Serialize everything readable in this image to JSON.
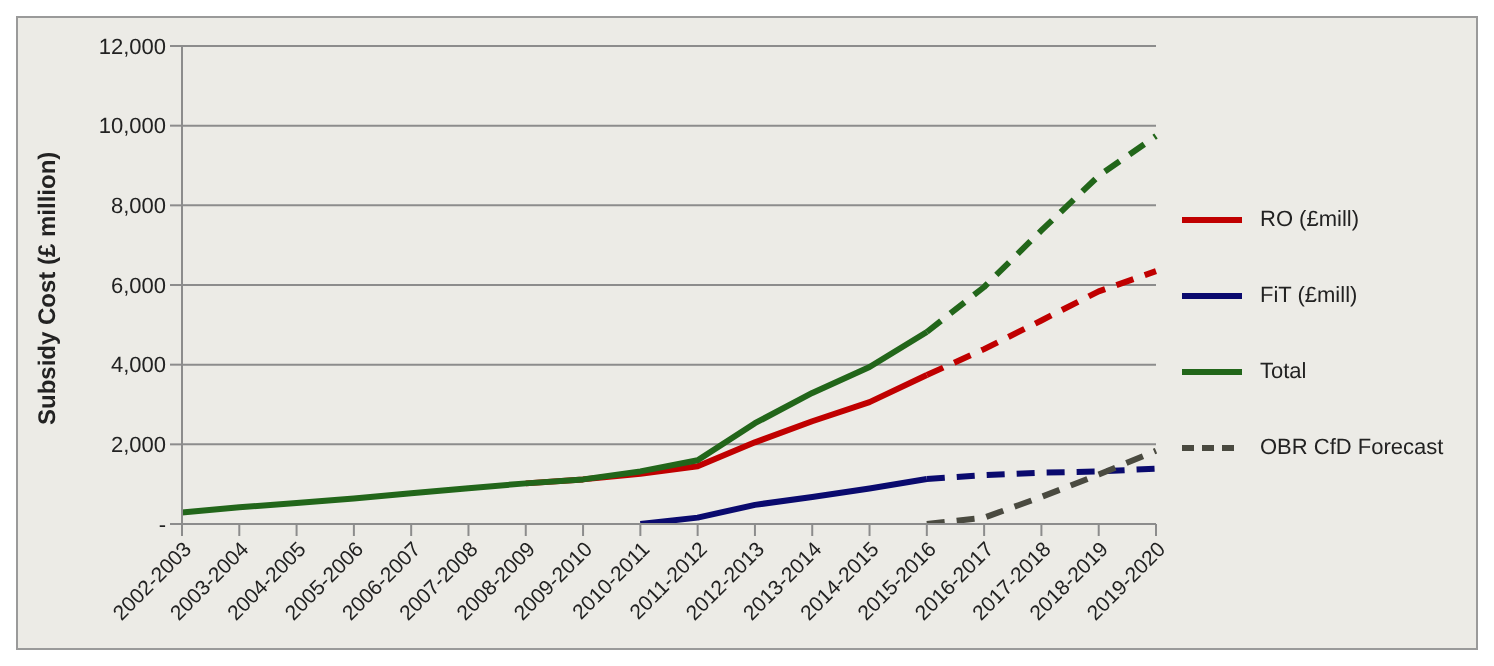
{
  "chart_data": {
    "type": "line",
    "ylabel": "Subsidy Cost (£ million)",
    "categories": [
      "2002-2003",
      "2003-2004",
      "2004-2005",
      "2005-2006",
      "2006-2007",
      "2007-2008",
      "2008-2009",
      "2009-2010",
      "2010-2011",
      "2011-2012",
      "2012-2013",
      "2013-2014",
      "2014-2015",
      "2015-2016",
      "2016-2017",
      "2017-2018",
      "2018-2019",
      "2019-2020"
    ],
    "series": [
      {
        "name": "RO (£mill)",
        "color": "#c00000",
        "line_style": "solid",
        "values": [
          null,
          null,
          null,
          null,
          null,
          null,
          1020,
          1120,
          1260,
          1450,
          2050,
          2580,
          3060,
          3740,
          null,
          null,
          null,
          null
        ]
      },
      {
        "color": "#c00000",
        "line_style": "dashed",
        "values": [
          null,
          null,
          null,
          null,
          null,
          null,
          null,
          null,
          null,
          null,
          null,
          null,
          null,
          3740,
          4390,
          5110,
          5840,
          6350
        ]
      },
      {
        "name": "FiT (£mill)",
        "color": "#0a0a6e",
        "line_style": "solid",
        "values": [
          null,
          null,
          null,
          null,
          null,
          null,
          null,
          null,
          0,
          160,
          480,
          680,
          890,
          1130,
          null,
          null,
          null,
          null
        ]
      },
      {
        "color": "#0a0a6e",
        "line_style": "dashed",
        "values": [
          null,
          null,
          null,
          null,
          null,
          null,
          null,
          null,
          null,
          null,
          null,
          null,
          null,
          1130,
          1230,
          1290,
          1320,
          1390
        ]
      },
      {
        "name": "Total",
        "color": "#22661a",
        "line_style": "solid",
        "values": [
          290,
          420,
          530,
          640,
          770,
          900,
          1020,
          1120,
          1320,
          1600,
          2530,
          3290,
          3940,
          4820,
          null,
          null,
          null,
          null
        ]
      },
      {
        "color": "#22661a",
        "line_style": "dashed",
        "values": [
          null,
          null,
          null,
          null,
          null,
          null,
          null,
          null,
          null,
          null,
          null,
          null,
          null,
          4820,
          5950,
          7370,
          8740,
          9740
        ]
      },
      {
        "name": "OBR CfD Forecast",
        "color": "#4a4a40",
        "line_style": "dashed",
        "values": [
          null,
          null,
          null,
          null,
          null,
          null,
          null,
          null,
          null,
          null,
          null,
          null,
          null,
          0,
          160,
          680,
          1240,
          1840
        ]
      }
    ],
    "ylim": [
      0,
      12000
    ],
    "yticks": [
      {
        "value": 0,
        "label": "-"
      },
      {
        "value": 2000,
        "label": "2,000"
      },
      {
        "value": 4000,
        "label": "4,000"
      },
      {
        "value": 6000,
        "label": "6,000"
      },
      {
        "value": 8000,
        "label": "8,000"
      },
      {
        "value": 10000,
        "label": "10,000"
      },
      {
        "value": 12000,
        "label": "12,000"
      }
    ],
    "grid": "y",
    "legend": "right",
    "marker": "none"
  }
}
